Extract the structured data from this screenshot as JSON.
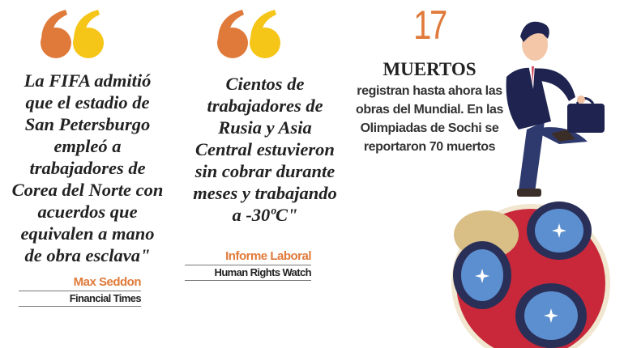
{
  "quotes": [
    {
      "text": "La FIFA admitió\nque el estadio de\nSan Petersburgo\nempleó a\ntrabajadores de\nCorea del Norte con\nacuerdos que\nequivalen a mano\nde obra esclava\"",
      "author": "Max Seddon",
      "source": "Financial Times"
    },
    {
      "text": "Cientos de\ntrabajadores de\nRusia y Asia\nCentral estuvieron\nsin cobrar durante\nmeses y trabajando\na -30ºC\"",
      "author": "Informe Laboral",
      "source": "Human Rights  Watch"
    }
  ],
  "stat": {
    "number": "17",
    "headline": "MUERTOS",
    "description": "registran hasta ahora las\nobras del Mundial. En las\nOlimpiadas de Sochi se\nreportaron 70 muertos"
  },
  "colors": {
    "orange": "#e07a3a",
    "yellow": "#f5c518",
    "ball_red": "#c8283a",
    "suit": "#1f2350"
  },
  "icons": {
    "quote": "quote-mark-icon",
    "illustration": "man-running-on-ball-illustration"
  }
}
